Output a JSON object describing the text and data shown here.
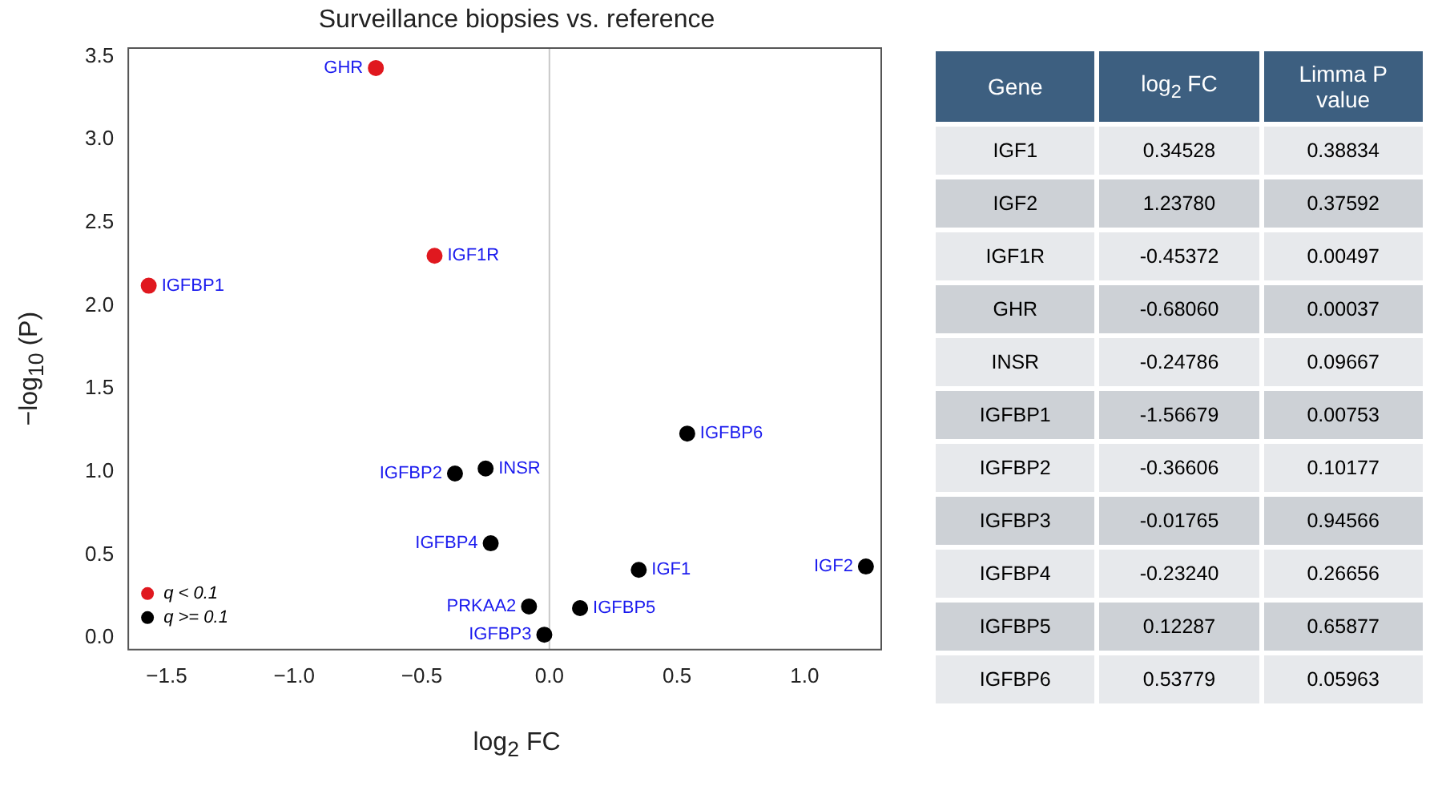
{
  "chart_data": [
    {
      "type": "scatter",
      "title": "Surveillance biopsies vs. reference",
      "xlabel": "log$_{2}$ FC",
      "ylabel": "−log$_{10}$ (P)",
      "xlim": [
        -1.65,
        1.3
      ],
      "ylim": [
        -0.07,
        3.55
      ],
      "xticks": [
        {
          "value": -1.5,
          "label": "−1.5"
        },
        {
          "value": -1,
          "label": "−1.0"
        },
        {
          "value": -0.5,
          "label": "−0.5"
        },
        {
          "value": 0,
          "label": "0.0"
        },
        {
          "value": 0.5,
          "label": "0.5"
        },
        {
          "value": 1,
          "label": "1.0"
        }
      ],
      "yticks": [
        {
          "value": 0,
          "label": "0.0"
        },
        {
          "value": 0.5,
          "label": "0.5"
        },
        {
          "value": 1,
          "label": "1.0"
        },
        {
          "value": 1.5,
          "label": "1.5"
        },
        {
          "value": 2,
          "label": "2.0"
        },
        {
          "value": 2.5,
          "label": "2.5"
        },
        {
          "value": 3,
          "label": "3.0"
        },
        {
          "value": 3.5,
          "label": "3.5"
        }
      ],
      "grid": false,
      "legend": "bottom left",
      "marker": "circle",
      "ref_lines": [
        {
          "axis": "x",
          "value": 0,
          "color": "#c8c8c8"
        }
      ],
      "series": [
        {
          "name": "q < 0.1",
          "color": "#e0181f",
          "x": [
            -0.68,
            -1.57,
            -0.45
          ],
          "values": [
            3.43,
            2.12,
            2.3
          ],
          "value_labels": [
            "GHR",
            "IGFBP1",
            "IGF1R"
          ]
        },
        {
          "name": "q >= 0.1",
          "color": "#000000",
          "x": [
            0.54,
            -0.37,
            -0.25,
            -0.23,
            0.35,
            1.24,
            -0.08,
            0.12,
            -0.02
          ],
          "values": [
            1.23,
            0.99,
            1.02,
            0.57,
            0.41,
            0.43,
            0.19,
            0.18,
            0.02
          ],
          "value_labels": [
            "IGFBP6",
            "IGFBP2",
            "INSR",
            "IGFBP4",
            "IGF1",
            "IGF2",
            "PRKAA2",
            "IGFBP5",
            "IGFBP3"
          ]
        }
      ]
    },
    {
      "type": "other",
      "categories": [
        "Gene",
        "log$_{2}$ FC",
        "Limma P value"
      ],
      "cell_labels": [
        [
          "IGF1",
          "0.34528",
          "0.38834"
        ],
        [
          "IGF2",
          "1.23780",
          "0.37592"
        ],
        [
          "IGF1R",
          "-0.45372",
          "0.00497"
        ],
        [
          "GHR",
          "-0.68060",
          "0.00037"
        ],
        [
          "INSR",
          "-0.24786",
          "0.09667"
        ],
        [
          "IGFBP1",
          "-1.56679",
          "0.00753"
        ],
        [
          "IGFBP2",
          "-0.36606",
          "0.10177"
        ],
        [
          "IGFBP3",
          "-0.01765",
          "0.94566"
        ],
        [
          "IGFBP4",
          "-0.23240",
          "0.26656"
        ],
        [
          "IGFBP5",
          "0.12287",
          "0.65877"
        ],
        [
          "IGFBP6",
          "0.53779",
          "0.05963"
        ]
      ]
    }
  ]
}
